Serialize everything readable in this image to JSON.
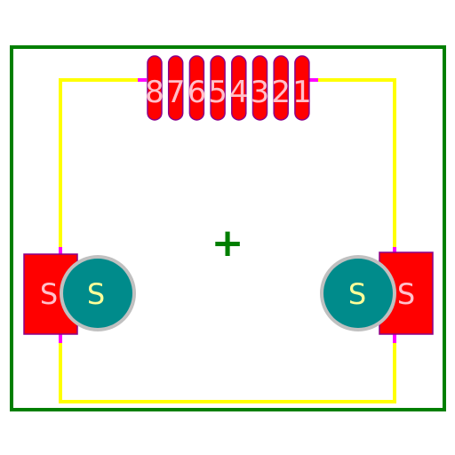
{
  "footprint": {
    "pin_labels": [
      "8",
      "7",
      "6",
      "5",
      "4",
      "3",
      "2",
      "1"
    ],
    "mount_pad_label": "S",
    "mount_hole_label": "S",
    "center_marker": "+"
  },
  "colors": {
    "background": "#ffffff",
    "courtyard": "#007f00",
    "silkscreen": "#ffff00",
    "silk_gap": "#ff00ff",
    "pad_fill": "#ff0000",
    "pad_outline": "#8b008b",
    "pad_text": "#ffc0cb",
    "hole_ring": "#c0c0c0",
    "hole_fill": "#008b8b",
    "hole_text": "#ffff99"
  }
}
